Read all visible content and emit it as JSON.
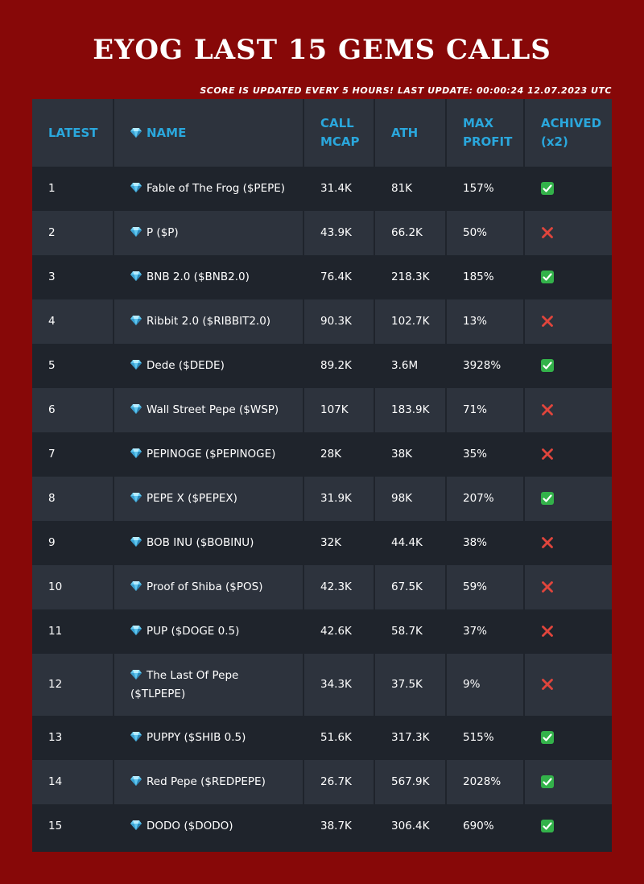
{
  "page": {
    "title": "EYOG LAST 15 GEMS CALLS",
    "subtitle": "SCORE IS UPDATED EVERY 5 HOURS! LAST UPDATE: 00:00:24 12.07.2023 UTC"
  },
  "colors": {
    "background": "#870808",
    "table_dark_row": "#1f242c",
    "table_light_row": "#2d333d",
    "header_text": "#2aa7dc",
    "achieved_yes": "#33b24a",
    "achieved_no": "#e0453c"
  },
  "table": {
    "headers": {
      "latest": "LATEST",
      "name": "NAME",
      "call_mcap": "CALL MCAP",
      "ath": "ATH",
      "max_profit": "MAX PROFIT",
      "achieved": "ACHIVED",
      "achieved_suffix": "(x2)"
    },
    "name_icon": "gem-icon",
    "rows": [
      {
        "latest": "1",
        "name": "Fable of The Frog ($PEPE)",
        "call_mcap": "31.4K",
        "ath": "81K",
        "max_profit": "157%",
        "achieved": "yes"
      },
      {
        "latest": "2",
        "name": "P ($P)",
        "call_mcap": "43.9K",
        "ath": "66.2K",
        "max_profit": "50%",
        "achieved": "no"
      },
      {
        "latest": "3",
        "name": "BNB 2.0 ($BNB2.0)",
        "call_mcap": "76.4K",
        "ath": "218.3K",
        "max_profit": "185%",
        "achieved": "yes"
      },
      {
        "latest": "4",
        "name": "Ribbit 2.0 ($RIBBIT2.0)",
        "call_mcap": "90.3K",
        "ath": "102.7K",
        "max_profit": "13%",
        "achieved": "no"
      },
      {
        "latest": "5",
        "name": "Dede ($DEDE)",
        "call_mcap": "89.2K",
        "ath": "3.6M",
        "max_profit": "3928%",
        "achieved": "yes"
      },
      {
        "latest": "6",
        "name": "Wall Street Pepe ($WSP)",
        "call_mcap": "107K",
        "ath": "183.9K",
        "max_profit": "71%",
        "achieved": "no"
      },
      {
        "latest": "7",
        "name": "PEPINOGE ($PEPINOGE)",
        "call_mcap": "28K",
        "ath": "38K",
        "max_profit": "35%",
        "achieved": "no"
      },
      {
        "latest": "8",
        "name": "PEPE X ($PEPEX)",
        "call_mcap": "31.9K",
        "ath": "98K",
        "max_profit": "207%",
        "achieved": "yes"
      },
      {
        "latest": "9",
        "name": "BOB INU ($BOBINU)",
        "call_mcap": "32K",
        "ath": "44.4K",
        "max_profit": "38%",
        "achieved": "no"
      },
      {
        "latest": "10",
        "name": "Proof of Shiba ($POS)",
        "call_mcap": "42.3K",
        "ath": "67.5K",
        "max_profit": "59%",
        "achieved": "no"
      },
      {
        "latest": "11",
        "name": "PUP ($DOGE 0.5)",
        "call_mcap": "42.6K",
        "ath": "58.7K",
        "max_profit": "37%",
        "achieved": "no"
      },
      {
        "latest": "12",
        "name": "The Last Of Pepe ($TLPEPE)",
        "call_mcap": "34.3K",
        "ath": "37.5K",
        "max_profit": "9%",
        "achieved": "no"
      },
      {
        "latest": "13",
        "name": "PUPPY ($SHIB 0.5)",
        "call_mcap": "51.6K",
        "ath": "317.3K",
        "max_profit": "515%",
        "achieved": "yes"
      },
      {
        "latest": "14",
        "name": "Red Pepe ($REDPEPE)",
        "call_mcap": "26.7K",
        "ath": "567.9K",
        "max_profit": "2028%",
        "achieved": "yes"
      },
      {
        "latest": "15",
        "name": "DODO ($DODO)",
        "call_mcap": "38.7K",
        "ath": "306.4K",
        "max_profit": "690%",
        "achieved": "yes"
      }
    ]
  }
}
